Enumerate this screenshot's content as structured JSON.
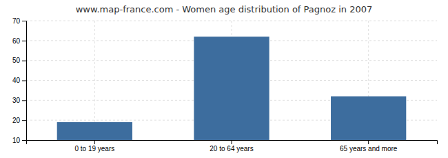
{
  "chart_data": {
    "type": "bar",
    "title": "www.map-france.com - Women age distribution of Pagnoz in 2007",
    "categories": [
      "0 to 19 years",
      "20 to 64 years",
      "65 years and more"
    ],
    "values": [
      19,
      62,
      32
    ],
    "color": "#3d6d9e",
    "ylim": [
      10,
      70
    ],
    "yticks": [
      10,
      20,
      30,
      40,
      50,
      60,
      70
    ],
    "grid": true
  }
}
